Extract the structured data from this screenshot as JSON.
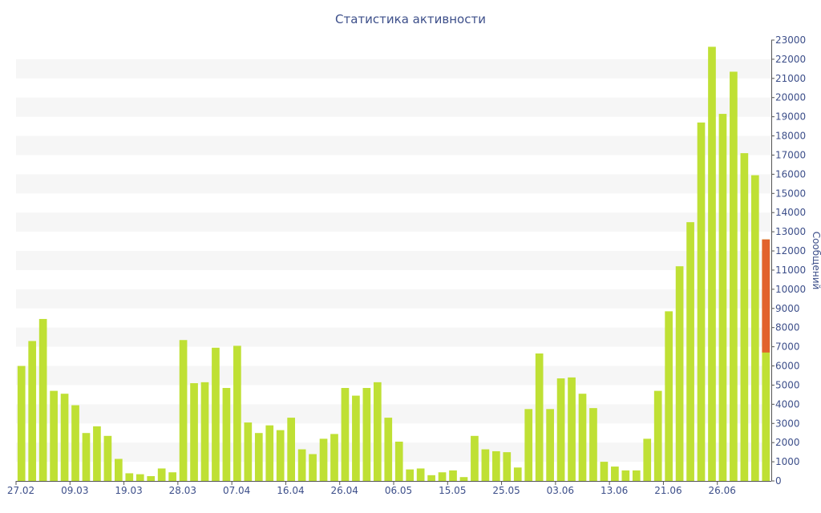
{
  "chart_data": {
    "type": "bar",
    "title": "Статистика активности",
    "xlabel": "",
    "ylabel": "Сообщений",
    "ylim": [
      0,
      23000
    ],
    "grid": true,
    "y_ticks": [
      0,
      1000,
      2000,
      3000,
      4000,
      5000,
      6000,
      7000,
      8000,
      9000,
      10000,
      11000,
      12000,
      13000,
      14000,
      15000,
      16000,
      17000,
      18000,
      19000,
      20000,
      21000,
      22000,
      23000
    ],
    "x_tick_labels": [
      {
        "index": 0,
        "label": "27.02"
      },
      {
        "index": 5,
        "label": "09.03"
      },
      {
        "index": 10,
        "label": "19.03"
      },
      {
        "index": 15,
        "label": "28.03"
      },
      {
        "index": 20,
        "label": "07.04"
      },
      {
        "index": 25,
        "label": "16.04"
      },
      {
        "index": 30,
        "label": "26.04"
      },
      {
        "index": 35,
        "label": "06.05"
      },
      {
        "index": 40,
        "label": "15.05"
      },
      {
        "index": 45,
        "label": "25.05"
      },
      {
        "index": 50,
        "label": "03.06"
      },
      {
        "index": 55,
        "label": "13.06"
      },
      {
        "index": 60,
        "label": "21.06"
      },
      {
        "index": 65,
        "label": "26.06"
      }
    ],
    "colors": {
      "bar": "#bfe034",
      "highlight": "#e2622d",
      "text": "#3d4f8a",
      "grid_band": "#f6f6f6",
      "axis": "#555555"
    },
    "values": [
      6000,
      7300,
      8450,
      4700,
      4550,
      3950,
      2500,
      2850,
      2350,
      1150,
      400,
      350,
      250,
      650,
      450,
      7350,
      5100,
      5150,
      6950,
      4850,
      7050,
      3050,
      2500,
      2900,
      2650,
      3300,
      1650,
      1400,
      2200,
      2450,
      4850,
      4450,
      4850,
      5150,
      3300,
      2050,
      600,
      650,
      300,
      450,
      550,
      200,
      2350,
      1650,
      1550,
      1500,
      700,
      3750,
      6650,
      3750,
      5350,
      5400,
      4550,
      3800,
      1000,
      750,
      550,
      550,
      2200,
      4700,
      8850,
      11200,
      13500,
      18700,
      22650,
      19150,
      21350,
      17100,
      15950,
      12600
    ],
    "highlight": {
      "index": 69,
      "from": 6700,
      "to": 12600
    }
  }
}
